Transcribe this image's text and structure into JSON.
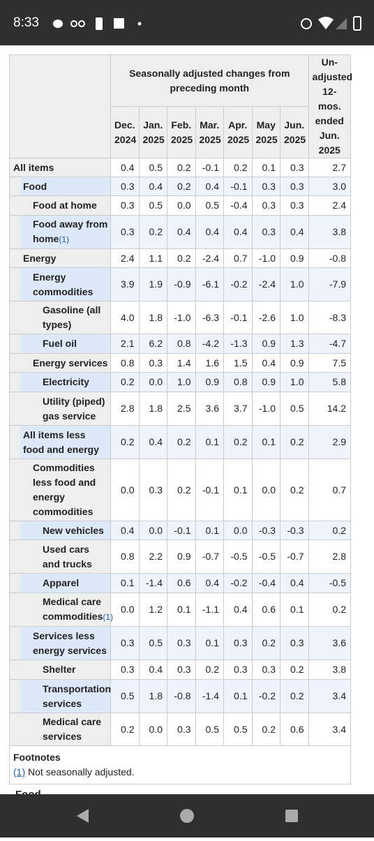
{
  "status_bar": {
    "time": "8:33"
  },
  "table": {
    "group_header": "Seasonally adjusted changes from preceding month",
    "unadjusted_header": "Un-adjusted 12-mos. ended Jun. 2025",
    "columns": [
      "Dec. 2024",
      "Jan. 2025",
      "Feb. 2025",
      "Mar. 2025",
      "Apr. 2025",
      "May 2025",
      "Jun. 2025"
    ],
    "rows": [
      {
        "label": "All items",
        "values": [
          "0.4",
          "0.5",
          "0.2",
          "-0.1",
          "0.2",
          "0.1",
          "0.3",
          "2.7"
        ]
      },
      {
        "label": "Food",
        "values": [
          "0.3",
          "0.4",
          "0.2",
          "0.4",
          "-0.1",
          "0.3",
          "0.3",
          "3.0"
        ]
      },
      {
        "label": "Food at home",
        "values": [
          "0.3",
          "0.5",
          "0.0",
          "0.5",
          "-0.4",
          "0.3",
          "0.3",
          "2.4"
        ]
      },
      {
        "label": "Food away from home",
        "note": "(1)",
        "values": [
          "0.3",
          "0.2",
          "0.4",
          "0.4",
          "0.4",
          "0.3",
          "0.4",
          "3.8"
        ]
      },
      {
        "label": "Energy",
        "values": [
          "2.4",
          "1.1",
          "0.2",
          "-2.4",
          "0.7",
          "-1.0",
          "0.9",
          "-0.8"
        ]
      },
      {
        "label": "Energy commodities",
        "values": [
          "3.9",
          "1.9",
          "-0.9",
          "-6.1",
          "-0.2",
          "-2.4",
          "1.0",
          "-7.9"
        ]
      },
      {
        "label": "Gasoline (all types)",
        "values": [
          "4.0",
          "1.8",
          "-1.0",
          "-6.3",
          "-0.1",
          "-2.6",
          "1.0",
          "-8.3"
        ]
      },
      {
        "label": "Fuel oil",
        "values": [
          "2.1",
          "6.2",
          "0.8",
          "-4.2",
          "-1.3",
          "0.9",
          "1.3",
          "-4.7"
        ]
      },
      {
        "label": "Energy services",
        "values": [
          "0.8",
          "0.3",
          "1.4",
          "1.6",
          "1.5",
          "0.4",
          "0.9",
          "7.5"
        ]
      },
      {
        "label": "Electricity",
        "values": [
          "0.2",
          "0.0",
          "1.0",
          "0.9",
          "0.8",
          "0.9",
          "1.0",
          "5.8"
        ]
      },
      {
        "label": "Utility (piped) gas service",
        "values": [
          "2.8",
          "1.8",
          "2.5",
          "3.6",
          "3.7",
          "-1.0",
          "0.5",
          "14.2"
        ]
      },
      {
        "label": "All items less food and energy",
        "values": [
          "0.2",
          "0.4",
          "0.2",
          "0.1",
          "0.2",
          "0.1",
          "0.2",
          "2.9"
        ]
      },
      {
        "label": "Commodities less food and energy commodities",
        "values": [
          "0.0",
          "0.3",
          "0.2",
          "-0.1",
          "0.1",
          "0.0",
          "0.2",
          "0.7"
        ]
      },
      {
        "label": "New vehicles",
        "values": [
          "0.4",
          "0.0",
          "-0.1",
          "0.1",
          "0.0",
          "-0.3",
          "-0.3",
          "0.2"
        ]
      },
      {
        "label": "Used cars and trucks",
        "values": [
          "0.8",
          "2.2",
          "0.9",
          "-0.7",
          "-0.5",
          "-0.5",
          "-0.7",
          "2.8"
        ]
      },
      {
        "label": "Apparel",
        "values": [
          "0.1",
          "-1.4",
          "0.6",
          "0.4",
          "-0.2",
          "-0.4",
          "0.4",
          "-0.5"
        ]
      },
      {
        "label": "Medical care commodities",
        "note": "(1)",
        "values": [
          "0.0",
          "1.2",
          "0.1",
          "-1.1",
          "0.4",
          "0.6",
          "0.1",
          "0.2"
        ]
      },
      {
        "label": "Services less energy services",
        "values": [
          "0.3",
          "0.5",
          "0.3",
          "0.1",
          "0.3",
          "0.2",
          "0.3",
          "3.6"
        ]
      },
      {
        "label": "Shelter",
        "values": [
          "0.3",
          "0.4",
          "0.3",
          "0.2",
          "0.3",
          "0.3",
          "0.2",
          "3.8"
        ]
      },
      {
        "label": "Transportation services",
        "values": [
          "0.5",
          "1.8",
          "-0.8",
          "-1.4",
          "0.1",
          "-0.2",
          "0.2",
          "3.4"
        ]
      },
      {
        "label": "Medical care services",
        "values": [
          "0.2",
          "0.0",
          "0.3",
          "0.5",
          "0.5",
          "0.2",
          "0.6",
          "3.4"
        ]
      }
    ]
  },
  "footnotes": {
    "title": "Footnotes",
    "items": [
      {
        "marker": "(1)",
        "text": "Not seasonally adjusted."
      }
    ]
  },
  "next_heading": "Food"
}
